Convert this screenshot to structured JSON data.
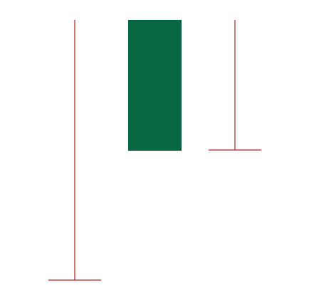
{
  "colors": {
    "background": "#ffffff",
    "line": "#b22222",
    "block": "#086641"
  },
  "shapes": [
    {
      "kind": "t-shape",
      "name": "tall-t-marker",
      "color_key": "line"
    },
    {
      "kind": "rectangle",
      "name": "green-block",
      "color_key": "block"
    },
    {
      "kind": "t-shape",
      "name": "short-t-marker",
      "color_key": "line"
    }
  ]
}
